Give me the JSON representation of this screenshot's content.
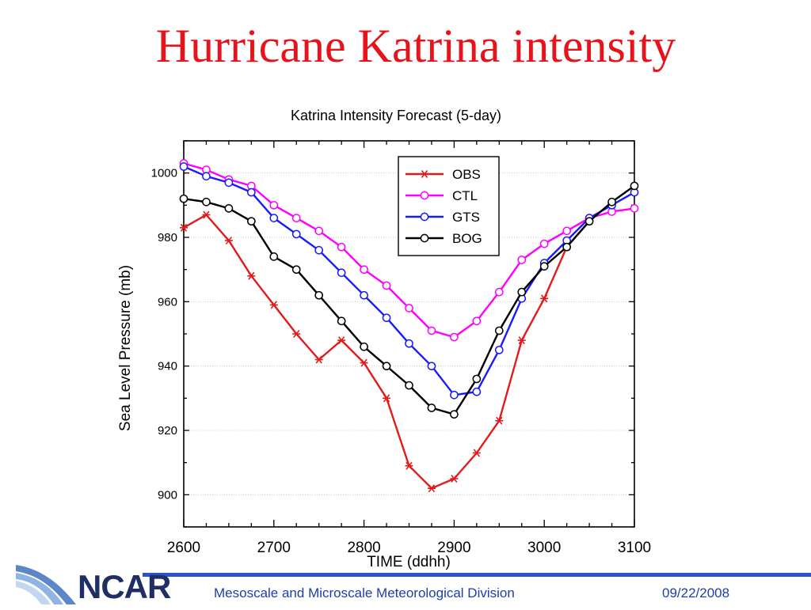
{
  "slide": {
    "title": "Hurricane Katrina intensity",
    "footer_org": "Mesoscale and Microscale Meteorological Division",
    "footer_date": "09/22/2008",
    "logo_text": "NCAR"
  },
  "colors": {
    "title": "#e8121b",
    "footer_text": "#1e3ea8",
    "footer_rule": "#2b52cc"
  },
  "chart_data": {
    "type": "line",
    "title": "Katrina Intensity Forecast (5-day)",
    "xlabel": "TIME (ddhh)",
    "ylabel": "Sea Level Pressure (mb)",
    "xlim": [
      2600,
      3100
    ],
    "ylim": [
      890,
      1010
    ],
    "xticks": [
      2600,
      2700,
      2800,
      2900,
      3000,
      3100
    ],
    "yticks": [
      900,
      920,
      940,
      960,
      980,
      1000
    ],
    "grid": true,
    "legend_position": "top-right",
    "series": [
      {
        "name": "OBS",
        "color": "#e31a1c",
        "marker": "star",
        "x": [
          2600,
          2625,
          2650,
          2675,
          2700,
          2725,
          2750,
          2775,
          2800,
          2825,
          2850,
          2875,
          2900,
          2925,
          2950,
          2975,
          3000,
          3025,
          3050
        ],
        "y": [
          983,
          987,
          979,
          968,
          959,
          950,
          942,
          948,
          941,
          930,
          909,
          902,
          905,
          913,
          923,
          948,
          961,
          977,
          985
        ]
      },
      {
        "name": "CTL",
        "color": "#ff00ff",
        "marker": "circle",
        "x": [
          2600,
          2625,
          2650,
          2675,
          2700,
          2725,
          2750,
          2775,
          2800,
          2825,
          2850,
          2875,
          2900,
          2925,
          2950,
          2975,
          3000,
          3025,
          3050,
          3075,
          3100
        ],
        "y": [
          1003,
          1001,
          998,
          996,
          990,
          986,
          982,
          977,
          970,
          965,
          958,
          951,
          949,
          954,
          963,
          973,
          978,
          982,
          986,
          988,
          989
        ]
      },
      {
        "name": "GTS",
        "color": "#1a1aff",
        "marker": "circle",
        "x": [
          2600,
          2625,
          2650,
          2675,
          2700,
          2725,
          2750,
          2775,
          2800,
          2825,
          2850,
          2875,
          2900,
          2925,
          2950,
          2975,
          3000,
          3025,
          3050,
          3075,
          3100
        ],
        "y": [
          1002,
          999,
          997,
          994,
          986,
          981,
          976,
          969,
          962,
          955,
          947,
          940,
          931,
          932,
          945,
          961,
          972,
          979,
          986,
          990,
          994
        ]
      },
      {
        "name": "BOG",
        "color": "#000000",
        "marker": "circle",
        "x": [
          2600,
          2625,
          2650,
          2675,
          2700,
          2725,
          2750,
          2775,
          2800,
          2825,
          2850,
          2875,
          2900,
          2925,
          2950,
          2975,
          3000,
          3025,
          3050,
          3075,
          3100
        ],
        "y": [
          992,
          991,
          989,
          985,
          974,
          970,
          962,
          954,
          946,
          940,
          934,
          927,
          925,
          936,
          951,
          963,
          971,
          977,
          985,
          991,
          996
        ]
      }
    ]
  }
}
